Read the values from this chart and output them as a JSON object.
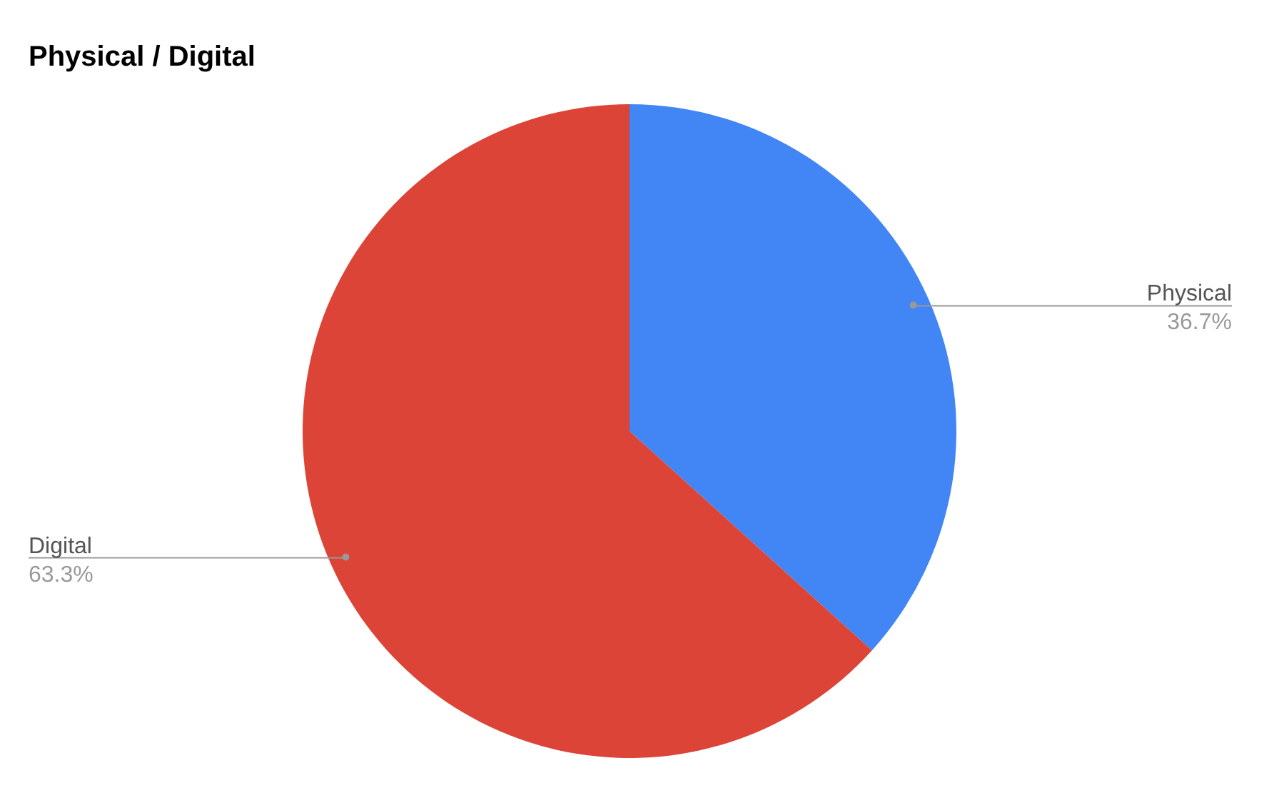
{
  "chart_data": {
    "type": "pie",
    "title": "Physical / Digital",
    "categories": [
      "Physical",
      "Digital"
    ],
    "values": [
      36.7,
      63.3
    ],
    "colors": [
      "#4285f4",
      "#db4437"
    ],
    "value_labels": [
      "36.7%",
      "63.3%"
    ]
  }
}
